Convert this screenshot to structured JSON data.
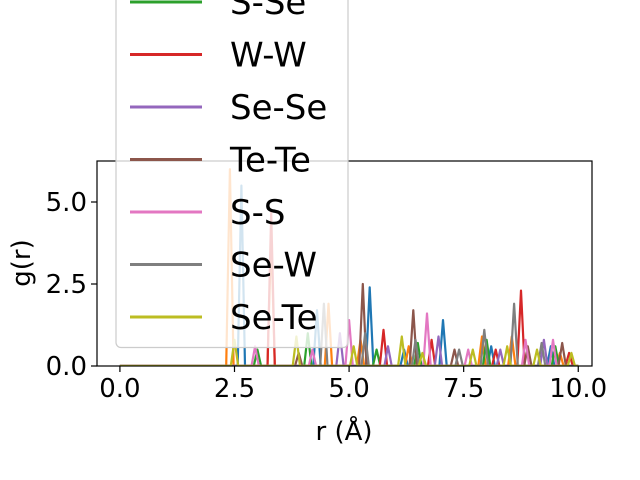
{
  "chart_data": {
    "type": "line",
    "xlabel": "r (Å)",
    "ylabel": "g(r)",
    "xlim": [
      -0.5,
      10.3
    ],
    "ylim": [
      0,
      6.25
    ],
    "xticks": [
      0.0,
      2.5,
      5.0,
      7.5,
      10.0
    ],
    "xtick_labels": [
      "0.0",
      "2.5",
      "5.0",
      "7.5",
      "10.0"
    ],
    "yticks": [
      0.0,
      2.5,
      5.0
    ],
    "ytick_labels": [
      "0.0",
      "2.5",
      "5.0"
    ],
    "grid": false,
    "legend_placement": "upper-left (overflowing above the axes)",
    "legend_entries": [
      {
        "label": "S-Se",
        "color": "#2ca02c",
        "visible": "partially clipped at top"
      },
      {
        "label": "W-W",
        "color": "#d62728"
      },
      {
        "label": "Se-Se",
        "color": "#9467bd"
      },
      {
        "label": "Te-Te",
        "color": "#8c564b"
      },
      {
        "label": "S-S",
        "color": "#e377c2"
      },
      {
        "label": "Se-W",
        "color": "#7f7f7f"
      },
      {
        "label": "Se-Te",
        "color": "#bcbd22"
      }
    ],
    "series": [
      {
        "color": "#1f77b4",
        "peaks": [
          [
            2.65,
            5.5
          ],
          [
            4.3,
            1.7
          ],
          [
            5.45,
            2.4
          ],
          [
            6.2,
            0.5
          ],
          [
            7.05,
            1.4
          ],
          [
            8.1,
            0.6
          ],
          [
            9.4,
            0.6
          ]
        ]
      },
      {
        "color": "#ff7f0e",
        "peaks": [
          [
            2.4,
            6.0
          ],
          [
            3.3,
            4.0
          ],
          [
            4.55,
            1.9
          ],
          [
            5.25,
            0.8
          ],
          [
            6.3,
            0.6
          ],
          [
            7.9,
            0.9
          ],
          [
            8.55,
            0.9
          ],
          [
            9.6,
            0.4
          ]
        ]
      },
      {
        "name": "S-Se",
        "color": "#2ca02c",
        "peaks": [
          [
            3.0,
            0.5
          ],
          [
            4.1,
            1.0
          ],
          [
            5.6,
            0.5
          ],
          [
            6.5,
            0.7
          ],
          [
            8.0,
            0.8
          ],
          [
            9.5,
            0.6
          ]
        ]
      },
      {
        "name": "W-W",
        "color": "#d62728",
        "peaks": [
          [
            3.3,
            4.7
          ],
          [
            5.75,
            1.1
          ],
          [
            6.8,
            0.8
          ],
          [
            8.2,
            0.5
          ],
          [
            8.75,
            2.3
          ],
          [
            9.8,
            0.4
          ]
        ]
      },
      {
        "name": "Se-Se",
        "color": "#9467bd",
        "peaks": [
          [
            4.8,
            1.0
          ],
          [
            5.85,
            0.6
          ],
          [
            6.95,
            0.9
          ],
          [
            8.3,
            0.5
          ],
          [
            9.25,
            0.8
          ]
        ]
      },
      {
        "name": "Te-Te",
        "color": "#8c564b",
        "peaks": [
          [
            3.9,
            0.4
          ],
          [
            5.3,
            2.5
          ],
          [
            6.4,
            1.7
          ],
          [
            7.3,
            0.5
          ],
          [
            8.9,
            0.6
          ],
          [
            9.65,
            0.7
          ]
        ]
      },
      {
        "name": "S-S",
        "color": "#e377c2",
        "peaks": [
          [
            2.95,
            0.6
          ],
          [
            4.2,
            0.5
          ],
          [
            5.0,
            1.4
          ],
          [
            6.7,
            1.6
          ],
          [
            7.6,
            0.5
          ],
          [
            8.85,
            0.8
          ],
          [
            9.45,
            0.8
          ]
        ]
      },
      {
        "name": "Se-W",
        "color": "#7f7f7f",
        "peaks": [
          [
            4.45,
            1.9
          ],
          [
            5.35,
            1.0
          ],
          [
            6.45,
            0.8
          ],
          [
            7.4,
            0.5
          ],
          [
            7.95,
            1.1
          ],
          [
            8.6,
            1.9
          ],
          [
            9.2,
            0.7
          ]
        ]
      },
      {
        "name": "Se-Te",
        "color": "#bcbd22",
        "peaks": [
          [
            2.5,
            0.8
          ],
          [
            3.85,
            0.9
          ],
          [
            5.1,
            0.6
          ],
          [
            6.15,
            0.9
          ],
          [
            6.6,
            0.4
          ],
          [
            7.7,
            0.5
          ],
          [
            8.45,
            0.6
          ],
          [
            9.1,
            0.5
          ],
          [
            9.85,
            0.4
          ]
        ]
      }
    ]
  }
}
